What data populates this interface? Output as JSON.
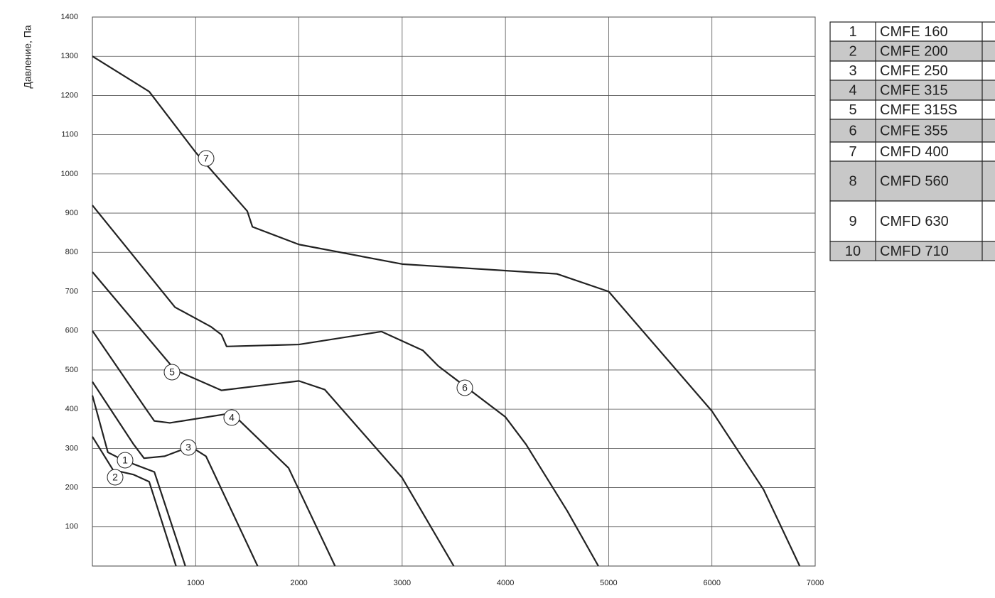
{
  "chart_data": {
    "type": "line",
    "y_label": "Давление, Па",
    "xlim": [
      0,
      7000
    ],
    "ylim": [
      0,
      1400
    ],
    "xticks": [
      1000,
      2000,
      3000,
      4000,
      5000,
      6000,
      7000
    ],
    "yticks": [
      100,
      200,
      300,
      400,
      500,
      600,
      700,
      800,
      900,
      1000,
      1100,
      1200,
      1300,
      1400
    ],
    "grid": true,
    "color": "#222222",
    "series": [
      {
        "name": "1",
        "x": [
          0,
          150,
          300,
          600,
          900
        ],
        "values": [
          435,
          290,
          270,
          240,
          0
        ]
      },
      {
        "name": "2",
        "x": [
          0,
          200,
          400,
          550,
          810
        ],
        "values": [
          330,
          245,
          233,
          215,
          0
        ]
      },
      {
        "name": "3",
        "x": [
          0,
          400,
          500,
          700,
          950,
          1100,
          1600
        ],
        "values": [
          470,
          310,
          275,
          280,
          305,
          280,
          0
        ]
      },
      {
        "name": "4",
        "x": [
          0,
          520,
          600,
          750,
          1350,
          1900,
          2350
        ],
        "values": [
          600,
          400,
          370,
          365,
          390,
          250,
          0
        ]
      },
      {
        "name": "5",
        "x": [
          0,
          800,
          1250,
          2000,
          2250,
          3000,
          3500
        ],
        "values": [
          750,
          500,
          448,
          472,
          450,
          225,
          0
        ]
      },
      {
        "name": "6",
        "x": [
          0,
          800,
          1150,
          1250,
          1300,
          2000,
          2800,
          3200,
          3350,
          4000,
          4200,
          4600,
          4900
        ],
        "values": [
          920,
          660,
          610,
          590,
          560,
          565,
          598,
          550,
          510,
          380,
          310,
          140,
          0
        ]
      },
      {
        "name": "7",
        "x": [
          0,
          550,
          1000,
          1500,
          1550,
          2000,
          3000,
          4500,
          5000,
          6000,
          6500,
          6850
        ],
        "values": [
          1300,
          1210,
          1055,
          905,
          865,
          820,
          770,
          745,
          700,
          395,
          195,
          0
        ]
      }
    ]
  },
  "legend_table": {
    "rows": [
      [
        "1",
        "CMFE 160"
      ],
      [
        "2",
        "CMFE 200"
      ],
      [
        "3",
        "CMFE 250"
      ],
      [
        "4",
        "CMFE 315"
      ],
      [
        "5",
        "CMFE 315S"
      ],
      [
        "6",
        "CMFE 355"
      ],
      [
        "7",
        "CMFD 400"
      ],
      [
        "8",
        "CMFD 560"
      ],
      [
        "9",
        "CMFD 630"
      ],
      [
        "10",
        "CMFD 710"
      ]
    ]
  }
}
